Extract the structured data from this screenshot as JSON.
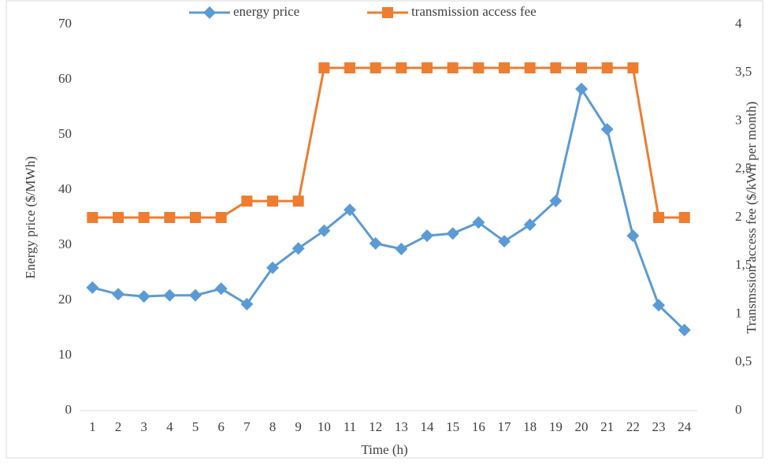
{
  "chart_data": {
    "type": "line",
    "x_label": "Time (h)",
    "y_label": "Energy price ($/MWh)",
    "y2_label": "Transmssion access fee ($/kWh per month)",
    "categories": [
      1,
      2,
      3,
      4,
      5,
      6,
      7,
      8,
      9,
      10,
      11,
      12,
      13,
      14,
      15,
      16,
      17,
      18,
      19,
      20,
      21,
      22,
      23,
      24
    ],
    "series": [
      {
        "name": "energy price",
        "color": "#5b9bd5",
        "marker": "diamond",
        "values": [
          22.3,
          21.1,
          20.7,
          20.9,
          20.9,
          22.1,
          19.3,
          25.9,
          29.4,
          32.6,
          36.4,
          30.3,
          29.3,
          31.7,
          32.1,
          34.1,
          30.7,
          33.7,
          38.0,
          58.3,
          51.0,
          31.7,
          19.1,
          14.6
        ]
      },
      {
        "name": "transmission access fee",
        "color": "#ed7d31",
        "marker": "square",
        "axis": "y2",
        "values": [
          2,
          2,
          2,
          2,
          2,
          2,
          2.17,
          2.17,
          2.17,
          3.55,
          3.55,
          3.55,
          3.55,
          3.55,
          3.55,
          3.55,
          3.55,
          3.55,
          3.55,
          3.55,
          3.55,
          3.55,
          2,
          2
        ]
      }
    ],
    "ylim": [
      0,
      70
    ],
    "yticks": [
      0,
      10,
      20,
      30,
      40,
      50,
      60,
      70
    ],
    "y2lim": [
      0,
      4
    ],
    "y2ticks": [
      0,
      {
        "value": 0.5,
        "label": "0,5"
      },
      1,
      {
        "value": 1.5,
        "label": "1,5"
      },
      2,
      {
        "value": 2.5,
        "label": "2,5"
      },
      3,
      {
        "value": 3.5,
        "label": "3,5"
      },
      4
    ],
    "legend": "top"
  }
}
